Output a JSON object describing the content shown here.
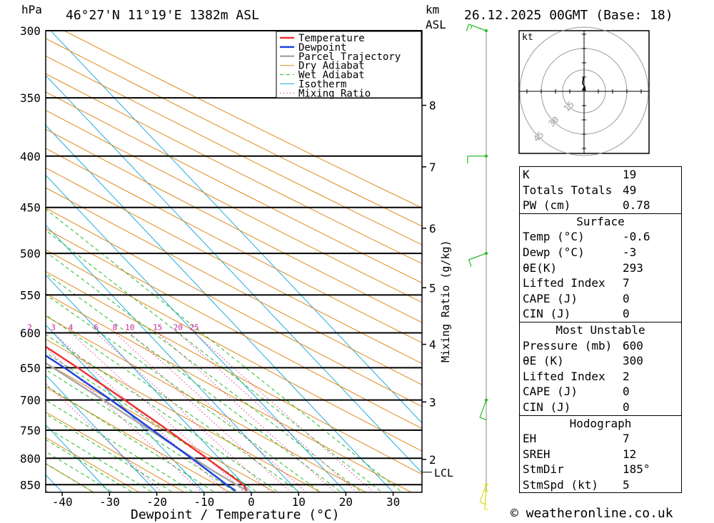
{
  "header": {
    "location": "46°27'N  11°19'E  1382m  ASL",
    "datetime": "26.12.2025  00GMT  (Base: 18)",
    "hpa_unit": "hPa",
    "km_unit": "km",
    "asl_unit": "ASL"
  },
  "chart_data": {
    "type": "line",
    "title": "Skew-T log-P diagram",
    "xlabel": "Dewpoint / Temperature (°C)",
    "ylabel": "hPa",
    "x_ticks": [
      -40,
      -30,
      -20,
      -10,
      0,
      10,
      20,
      30
    ],
    "xlim": [
      -45,
      36
    ],
    "pressure_levels": [
      300,
      350,
      400,
      450,
      500,
      550,
      600,
      650,
      700,
      750,
      800,
      850
    ],
    "pressure_range": [
      300,
      865
    ],
    "km_ticks": [
      {
        "km": "2",
        "p": 802
      },
      {
        "km": "3",
        "p": 703
      },
      {
        "km": "4",
        "p": 616
      },
      {
        "km": "5",
        "p": 541
      },
      {
        "km": "6",
        "p": 472
      },
      {
        "km": "7",
        "p": 410
      },
      {
        "km": "8",
        "p": 356
      }
    ],
    "lcl": {
      "label": "LCL",
      "p": 826
    },
    "mixing_ratio_title": "Mixing Ratio (g/kg)",
    "mixing_ratio_values": [
      "1",
      "2",
      "3",
      "4",
      "6",
      "8",
      "10",
      "15",
      "20",
      "25"
    ],
    "legend": [
      "Temperature",
      "Dewpoint",
      "Parcel Trajectory",
      "Dry Adiabat",
      "Wet Adiabat",
      "Isotherm",
      "Mixing Ratio"
    ],
    "series": [
      {
        "name": "Temperature",
        "color": "#ee3333",
        "points": [
          [
            862,
            -0.6
          ],
          [
            850,
            -0.2
          ],
          [
            800,
            -2.6
          ],
          [
            750,
            -5.2
          ],
          [
            700,
            -8.3
          ],
          [
            650,
            -11.8
          ],
          [
            600,
            -16.0
          ],
          [
            550,
            -20.8
          ],
          [
            500,
            -26.5
          ],
          [
            450,
            -33.0
          ],
          [
            400,
            -40.5
          ],
          [
            350,
            -48.5
          ],
          [
            300,
            -57.0
          ]
        ]
      },
      {
        "name": "Dewpoint",
        "color": "#2244dd",
        "points": [
          [
            862,
            -3.0
          ],
          [
            850,
            -3.7
          ],
          [
            800,
            -5.8
          ],
          [
            750,
            -8.4
          ],
          [
            700,
            -11.2
          ],
          [
            650,
            -14.6
          ],
          [
            600,
            -19.0
          ],
          [
            550,
            -24.2
          ],
          [
            500,
            -30.0
          ],
          [
            450,
            -36.5
          ],
          [
            400,
            -44.0
          ],
          [
            350,
            -52.0
          ],
          [
            300,
            -61.0
          ]
        ]
      },
      {
        "name": "Parcel Trajectory",
        "color": "#aaaaaa",
        "points": [
          [
            862,
            -0.6
          ],
          [
            826,
            -3.6
          ],
          [
            800,
            -5.4
          ],
          [
            750,
            -9.0
          ],
          [
            700,
            -12.8
          ],
          [
            650,
            -17.0
          ],
          [
            600,
            -21.6
          ],
          [
            550,
            -26.8
          ],
          [
            500,
            -32.6
          ],
          [
            450,
            -39.2
          ],
          [
            400,
            -46.6
          ],
          [
            350,
            -55.0
          ],
          [
            300,
            -64.5
          ]
        ]
      }
    ],
    "wind_barbs": [
      {
        "p": 300,
        "dir": 290,
        "kt": 15
      },
      {
        "p": 400,
        "dir": 270,
        "kt": 10
      },
      {
        "p": 500,
        "dir": 250,
        "kt": 10
      },
      {
        "p": 700,
        "dir": 200,
        "kt": 10
      },
      {
        "p": 850,
        "dir": 200,
        "kt": 10
      },
      {
        "p": 862,
        "dir": 185,
        "kt": 5
      }
    ],
    "hodograph": {
      "unit": "kt",
      "ring_labels": [
        "15",
        "30",
        "45"
      ],
      "points": [
        [
          0.3,
          0.8
        ],
        [
          0.6,
          3.0
        ],
        [
          -1.0,
          5.5
        ],
        [
          -0.6,
          9.0
        ],
        [
          0.0,
          10.0
        ]
      ]
    }
  },
  "stats": {
    "top": [
      {
        "k": "K",
        "v": "19"
      },
      {
        "k": "Totals Totals",
        "v": "49"
      },
      {
        "k": "PW (cm)",
        "v": "0.78"
      }
    ],
    "surface_title": "Surface",
    "surface": [
      {
        "k": "Temp (°C)",
        "v": "-0.6"
      },
      {
        "k": "Dewp (°C)",
        "v": "-3"
      },
      {
        "k": "θE(K)",
        "v": "293"
      },
      {
        "k": "Lifted Index",
        "v": "7"
      },
      {
        "k": "CAPE (J)",
        "v": "0"
      },
      {
        "k": "CIN (J)",
        "v": "0"
      }
    ],
    "mu_title": "Most Unstable",
    "mu": [
      {
        "k": "Pressure (mb)",
        "v": "600"
      },
      {
        "k": "θE (K)",
        "v": "300"
      },
      {
        "k": "Lifted Index",
        "v": "2"
      },
      {
        "k": "CAPE (J)",
        "v": "0"
      },
      {
        "k": "CIN (J)",
        "v": "0"
      }
    ],
    "hodo_title": "Hodograph",
    "hodo": [
      {
        "k": "EH",
        "v": "7"
      },
      {
        "k": "SREH",
        "v": "12"
      },
      {
        "k": "StmDir",
        "v": "185°"
      },
      {
        "k": "StmSpd (kt)",
        "v": "5"
      }
    ]
  },
  "copyright": "© weatheronline.co.uk"
}
